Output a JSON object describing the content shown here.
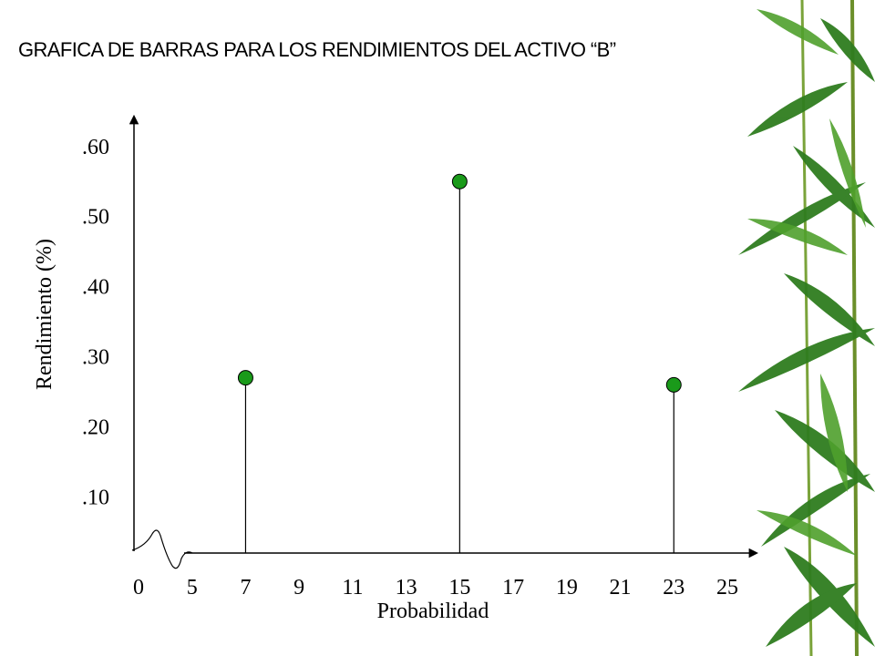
{
  "chart_data": {
    "type": "stem",
    "title": "GRAFICA DE BARRAS PARA LOS RENDIMIENTOS DEL ACTIVO “B”",
    "x_label": "Probabilidad",
    "y_label": "Rendimiento  (%)",
    "categories": [
      "0",
      "5",
      "7",
      "9",
      "11",
      "13",
      "15",
      "17",
      "19",
      "21",
      "23",
      "25"
    ],
    "values": [
      null,
      null,
      0.27,
      null,
      null,
      null,
      0.55,
      null,
      null,
      null,
      0.26,
      null
    ],
    "color": "#1a9a1a",
    "ylim": [
      0.02,
      0.64
    ],
    "yticks": [
      {
        "value": 0.6,
        "label": ".60"
      },
      {
        "value": 0.5,
        "label": ".50"
      },
      {
        "value": 0.4,
        "label": ".40"
      },
      {
        "value": 0.3,
        "label": ".30"
      },
      {
        "value": 0.2,
        "label": ".20"
      },
      {
        "value": 0.1,
        "label": ".10"
      }
    ]
  }
}
